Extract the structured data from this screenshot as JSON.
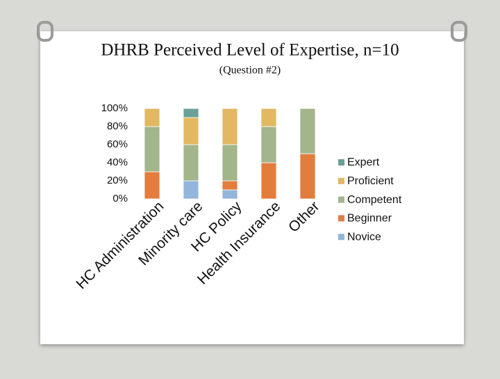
{
  "chart_data": {
    "type": "stacked-bar",
    "title": "DHRB Perceived Level of Expertise, n=10",
    "subtitle": "(Question #2)",
    "categories": [
      "HC Administration",
      "Minority care",
      "HC Policy",
      "Health Insurance",
      "Other"
    ],
    "series": [
      {
        "name": "Novice",
        "color": "#92b5dc",
        "values": [
          0,
          20,
          10,
          0,
          0
        ]
      },
      {
        "name": "Beginner",
        "color": "#e37d3d",
        "values": [
          30,
          0,
          10,
          40,
          50
        ]
      },
      {
        "name": "Competent",
        "color": "#a2b58b",
        "values": [
          50,
          40,
          40,
          40,
          50
        ]
      },
      {
        "name": "Proficient",
        "color": "#e2b862",
        "values": [
          20,
          30,
          40,
          20,
          0
        ]
      },
      {
        "name": "Expert",
        "color": "#6c9f98",
        "values": [
          0,
          10,
          0,
          0,
          0
        ]
      }
    ],
    "ylim": [
      0,
      100
    ],
    "yticks": [
      {
        "value": 0,
        "label": "0%"
      },
      {
        "value": 20,
        "label": "20%"
      },
      {
        "value": 40,
        "label": "40%"
      },
      {
        "value": 60,
        "label": "60%"
      },
      {
        "value": 80,
        "label": "80%"
      },
      {
        "value": 100,
        "label": "100%"
      }
    ],
    "legend": "right"
  }
}
